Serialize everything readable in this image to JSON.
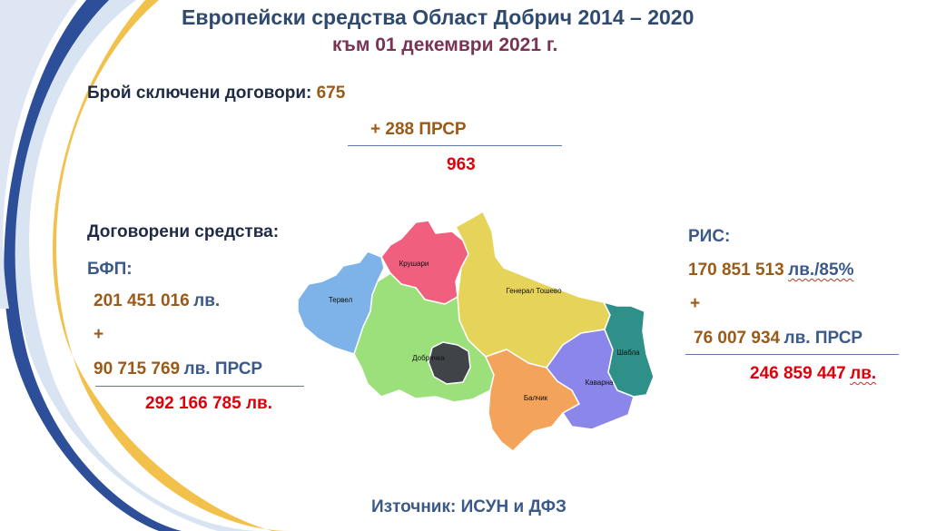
{
  "header": {
    "title": "Европейски средства Област Добрич 2014 – 2020",
    "subtitle": "към 01  декември 2021 г."
  },
  "contracts": {
    "label": "Брой сключени договори:",
    "value": "675",
    "addition": "+ 288 ПРСР",
    "total": "963"
  },
  "funds": {
    "label": "Договорени средства:",
    "bfp_label": "БФП:",
    "bfp_value": "201  451 016",
    "bfp_unit": "лв.",
    "plus": "+",
    "prsr_value": "90 715 769",
    "prsr_unit": "лв. ПРСР",
    "total": "292 166 785 лв."
  },
  "ris": {
    "label": "РИС:",
    "value": "170  851 513",
    "unit": "лв./85%",
    "plus": "+",
    "prsr_value": "76 007 934",
    "prsr_unit": "лв. ПРСР",
    "total_value": "246 859 447",
    "total_unit": "лв."
  },
  "map": {
    "regions": [
      {
        "name": "Крушари",
        "color": "#f0607e"
      },
      {
        "name": "Тервел",
        "color": "#7db3e8"
      },
      {
        "name": "Генерал Тошево",
        "color": "#e6d35a"
      },
      {
        "name": "Добричка",
        "color": "#9be07a"
      },
      {
        "name": "Добрич",
        "color": "#404448"
      },
      {
        "name": "Шабла",
        "color": "#2e9088"
      },
      {
        "name": "Каварна",
        "color": "#8a86ea"
      },
      {
        "name": "Балчик",
        "color": "#f4a35a"
      }
    ]
  },
  "source": "Източник: ИСУН и ДФЗ"
}
